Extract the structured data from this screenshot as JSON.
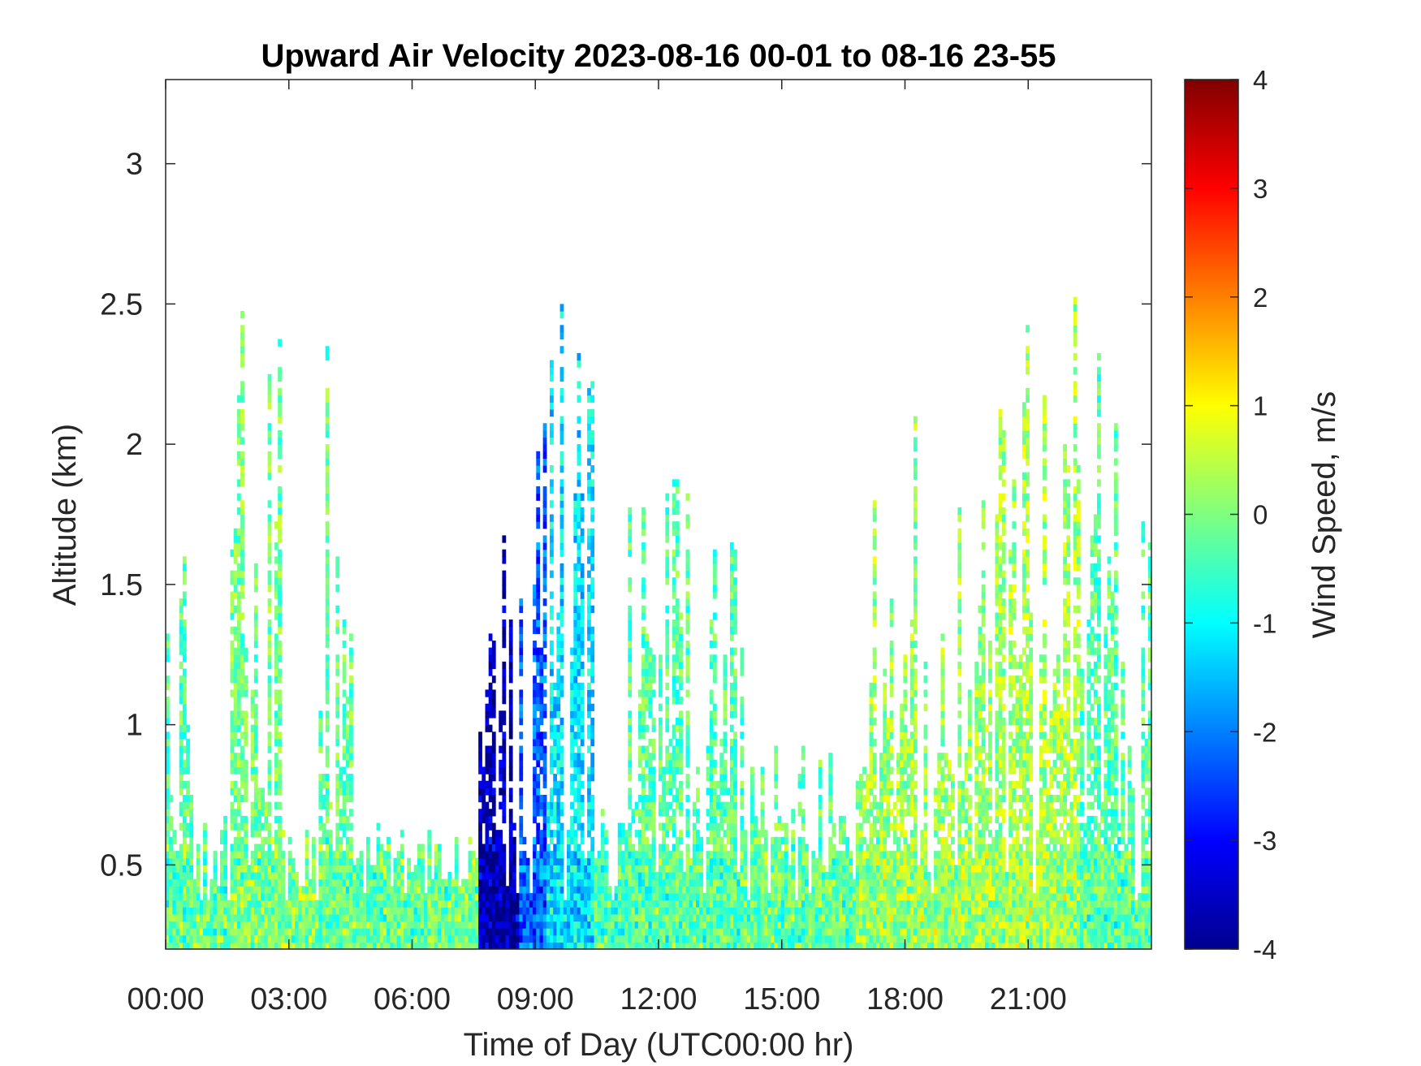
{
  "chart_data": {
    "type": "heatmap",
    "title": "Upward Air Velocity 2023-08-16 00-01 to 08-16 23-55",
    "xlabel": "Time of Day (UTC00:00 hr)",
    "ylabel": "Altitude (km)",
    "colorbar_label": "Wind Speed, m/s",
    "colormap": "jet",
    "xlim_hours": [
      0,
      24
    ],
    "ylim_km": [
      0.2,
      3.3
    ],
    "clim": [
      -4,
      4
    ],
    "x_ticks": [
      {
        "value": 0,
        "label": "00:00"
      },
      {
        "value": 3,
        "label": "03:00"
      },
      {
        "value": 6,
        "label": "06:00"
      },
      {
        "value": 9,
        "label": "09:00"
      },
      {
        "value": 12,
        "label": "12:00"
      },
      {
        "value": 15,
        "label": "15:00"
      },
      {
        "value": 18,
        "label": "18:00"
      },
      {
        "value": 21,
        "label": "21:00"
      }
    ],
    "y_ticks": [
      {
        "value": 0.5,
        "label": "0.5"
      },
      {
        "value": 1,
        "label": "1"
      },
      {
        "value": 1.5,
        "label": "1.5"
      },
      {
        "value": 2,
        "label": "2"
      },
      {
        "value": 2.5,
        "label": "2.5"
      },
      {
        "value": 3,
        "label": "3"
      }
    ],
    "colorbar_ticks": [
      {
        "value": 4,
        "label": "4"
      },
      {
        "value": 3,
        "label": "3"
      },
      {
        "value": 2,
        "label": "2"
      },
      {
        "value": 1,
        "label": "1"
      },
      {
        "value": 0,
        "label": "0"
      },
      {
        "value": -1,
        "label": "-1"
      },
      {
        "value": -2,
        "label": "-2"
      },
      {
        "value": -3,
        "label": "-3"
      },
      {
        "value": -4,
        "label": "-4"
      }
    ],
    "grid": false,
    "data_coverage": [
      {
        "start_hr": 0.0,
        "end_hr": 0.6,
        "top_km": 1.5,
        "mean_ms": -0.3
      },
      {
        "start_hr": 0.6,
        "end_hr": 1.5,
        "top_km": 0.6,
        "mean_ms": -0.2
      },
      {
        "start_hr": 1.5,
        "end_hr": 2.8,
        "top_km": 2.4,
        "mean_ms": -0.1
      },
      {
        "start_hr": 2.8,
        "end_hr": 3.7,
        "top_km": 0.5,
        "mean_ms": 0.0
      },
      {
        "start_hr": 3.7,
        "end_hr": 4.5,
        "top_km": 2.2,
        "mean_ms": -0.2
      },
      {
        "start_hr": 4.5,
        "end_hr": 7.6,
        "top_km": 0.5,
        "mean_ms": -0.2
      },
      {
        "start_hr": 7.6,
        "end_hr": 8.6,
        "top_km": 1.6,
        "mean_ms": -3.6
      },
      {
        "start_hr": 8.6,
        "end_hr": 9.2,
        "top_km": 2.4,
        "mean_ms": -2.3
      },
      {
        "start_hr": 9.2,
        "end_hr": 10.4,
        "top_km": 2.5,
        "mean_ms": -1.2
      },
      {
        "start_hr": 10.4,
        "end_hr": 11.1,
        "top_km": 0.6,
        "mean_ms": -0.4
      },
      {
        "start_hr": 11.1,
        "end_hr": 14.0,
        "top_km": 1.8,
        "mean_ms": -0.3
      },
      {
        "start_hr": 14.0,
        "end_hr": 16.8,
        "top_km": 0.8,
        "mean_ms": -0.2
      },
      {
        "start_hr": 16.8,
        "end_hr": 20.5,
        "top_km": 2.0,
        "mean_ms": 0.2
      },
      {
        "start_hr": 20.5,
        "end_hr": 22.2,
        "top_km": 2.4,
        "mean_ms": 0.3
      },
      {
        "start_hr": 22.2,
        "end_hr": 24.0,
        "top_km": 2.3,
        "mean_ms": -0.3
      }
    ]
  }
}
